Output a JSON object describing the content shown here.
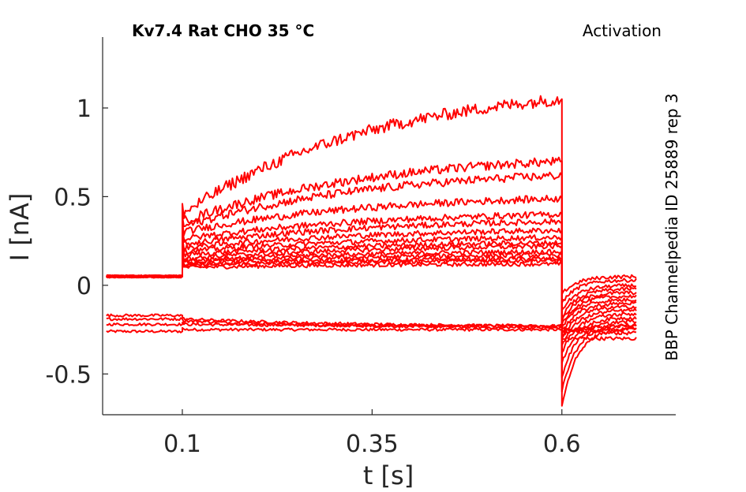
{
  "chart_data": {
    "type": "line",
    "title": "Kv7.4  Rat  CHO  35 °C",
    "subtitle": "Activation",
    "side_label": "BBP Channelpedia ID 25889 rep 3",
    "xlabel": "t [s]",
    "ylabel": "I [nA]",
    "xlim": [
      -0.005,
      0.75
    ],
    "ylim": [
      -0.73,
      1.4
    ],
    "xticks": [
      0.1,
      0.35,
      0.6
    ],
    "xtick_labels": [
      "0.1",
      "0.35",
      "0.6"
    ],
    "yticks": [
      -0.5,
      0,
      0.5,
      1
    ],
    "ytick_labels": [
      "-0.5",
      "0",
      "0.5",
      "1"
    ],
    "grid": false,
    "line_color": "#ff0000",
    "step_on": 0.1,
    "step_off": 0.6,
    "t_end": 0.7,
    "series": [
      {
        "pre": -0.26,
        "step_start": -0.25,
        "step_end": -0.25,
        "tail_start": -0.24,
        "tail_end": -0.27
      },
      {
        "pre": -0.22,
        "step_start": -0.22,
        "step_end": -0.23,
        "tail_start": -0.26,
        "tail_end": -0.25
      },
      {
        "pre": -0.19,
        "step_start": -0.2,
        "step_end": -0.24,
        "tail_start": -0.3,
        "tail_end": -0.3
      },
      {
        "pre": -0.17,
        "step_start": -0.19,
        "step_end": -0.23,
        "tail_start": -0.28,
        "tail_end": -0.23
      },
      {
        "pre": 0.05,
        "step_start": 0.1,
        "step_end": 0.12,
        "tail_start": -0.05,
        "tail_end": 0.05
      },
      {
        "pre": 0.05,
        "step_start": 0.11,
        "step_end": 0.14,
        "tail_start": -0.1,
        "tail_end": 0.03
      },
      {
        "pre": 0.05,
        "step_start": 0.12,
        "step_end": 0.15,
        "tail_start": -0.14,
        "tail_end": 0.0
      },
      {
        "pre": 0.05,
        "step_start": 0.13,
        "step_end": 0.17,
        "tail_start": -0.18,
        "tail_end": -0.02
      },
      {
        "pre": 0.05,
        "step_start": 0.14,
        "step_end": 0.19,
        "tail_start": -0.2,
        "tail_end": -0.04
      },
      {
        "pre": 0.05,
        "step_start": 0.15,
        "step_end": 0.22,
        "tail_start": -0.22,
        "tail_end": -0.06
      },
      {
        "pre": 0.05,
        "step_start": 0.17,
        "step_end": 0.24,
        "tail_start": -0.24,
        "tail_end": -0.08
      },
      {
        "pre": 0.05,
        "step_start": 0.19,
        "step_end": 0.27,
        "tail_start": -0.27,
        "tail_end": -0.1
      },
      {
        "pre": 0.05,
        "step_start": 0.21,
        "step_end": 0.31,
        "tail_start": -0.3,
        "tail_end": -0.12
      },
      {
        "pre": 0.05,
        "step_start": 0.23,
        "step_end": 0.36,
        "tail_start": -0.34,
        "tail_end": -0.14
      },
      {
        "pre": 0.05,
        "step_start": 0.26,
        "step_end": 0.4,
        "tail_start": -0.38,
        "tail_end": -0.16
      },
      {
        "pre": 0.05,
        "step_start": 0.3,
        "step_end": 0.49,
        "tail_start": -0.44,
        "tail_end": -0.18
      },
      {
        "pre": 0.05,
        "step_start": 0.33,
        "step_end": 0.62,
        "tail_start": -0.52,
        "tail_end": -0.2
      },
      {
        "pre": 0.05,
        "step_start": 0.36,
        "step_end": 0.7,
        "tail_start": -0.6,
        "tail_end": -0.22
      },
      {
        "pre": 0.05,
        "step_start": 0.4,
        "step_end": 1.05,
        "tail_start": -0.68,
        "tail_end": -0.24
      }
    ]
  }
}
